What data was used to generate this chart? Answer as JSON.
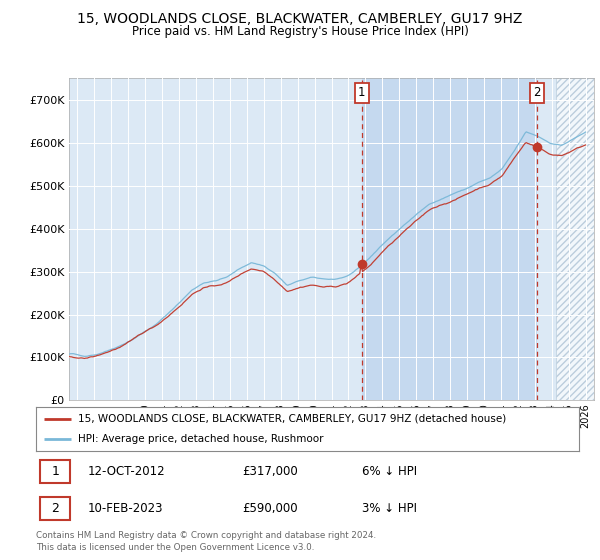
{
  "title": "15, WOODLANDS CLOSE, BLACKWATER, CAMBERLEY, GU17 9HZ",
  "subtitle": "Price paid vs. HM Land Registry's House Price Index (HPI)",
  "legend_line1": "15, WOODLANDS CLOSE, BLACKWATER, CAMBERLEY, GU17 9HZ (detached house)",
  "legend_line2": "HPI: Average price, detached house, Rushmoor",
  "footnote": "Contains HM Land Registry data © Crown copyright and database right 2024.\nThis data is licensed under the Open Government Licence v3.0.",
  "sale1_date": "12-OCT-2012",
  "sale1_price": "£317,000",
  "sale1_hpi": "6% ↓ HPI",
  "sale2_date": "10-FEB-2023",
  "sale2_price": "£590,000",
  "sale2_hpi": "3% ↓ HPI",
  "hpi_color": "#7ab8d8",
  "price_color": "#c0392b",
  "bg_color": "#dce9f5",
  "highlight_color": "#c5d9ef",
  "hatch_color": "#aabfd0",
  "ylim": [
    0,
    750000
  ],
  "yticks": [
    0,
    100000,
    200000,
    300000,
    400000,
    500000,
    600000,
    700000
  ],
  "xlim_start": 1995.5,
  "xlim_end": 2026.5,
  "sale1_x": 2012.79,
  "sale1_y": 317000,
  "sale2_x": 2023.12,
  "sale2_y": 590000,
  "highlight_start": 2012.79,
  "highlight_end": 2023.12,
  "hatch_start": 2024.25
}
